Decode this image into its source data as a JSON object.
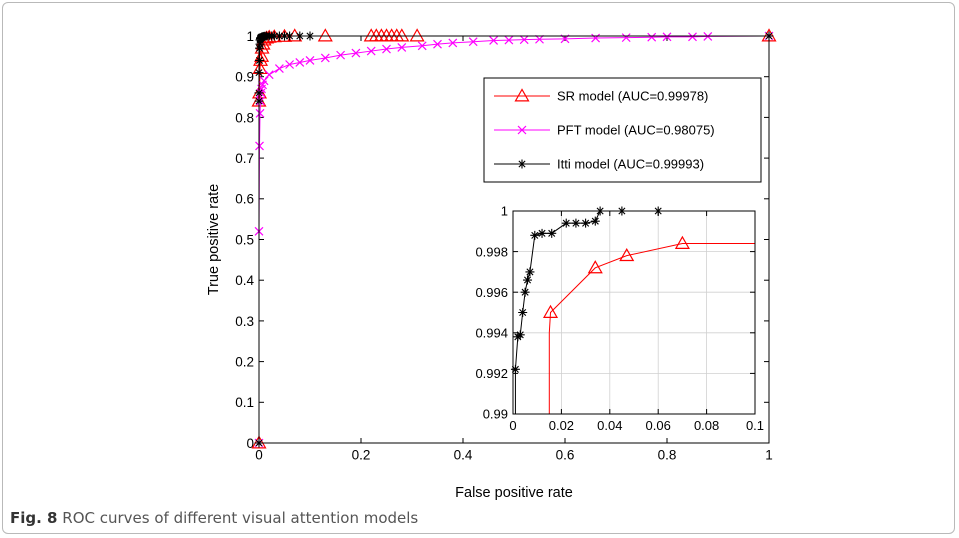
{
  "caption": {
    "label": "Fig. 8",
    "text": "ROC curves of different visual attention models"
  },
  "chart_data": [
    {
      "id": "main",
      "type": "line",
      "xlabel": "False positive rate",
      "ylabel": "True positive rate",
      "xlim": [
        0,
        1
      ],
      "ylim": [
        0,
        1
      ],
      "xticks": [
        "0",
        "0.2",
        "0.4",
        "0.6",
        "0.8",
        "1"
      ],
      "yticks": [
        "0",
        "0.1",
        "0.2",
        "0.3",
        "0.4",
        "0.5",
        "0.6",
        "0.7",
        "0.8",
        "0.9",
        "1"
      ],
      "grid": false,
      "legend": {
        "placement": "top-right",
        "entries": [
          {
            "label": "SR model (AUC=0.99978)",
            "color": "#ff0000",
            "marker": "triangle"
          },
          {
            "label": "PFT model (AUC=0.98075)",
            "color": "#ff00ff",
            "marker": "x"
          },
          {
            "label": "Itti model (AUC=0.99993)",
            "color": "#000000",
            "marker": "star"
          }
        ]
      },
      "series": [
        {
          "name": "SR model (AUC=0.99978)",
          "color": "#ff0000",
          "marker": "triangle",
          "x": [
            0,
            0,
            0.001,
            0.002,
            0.003,
            0.005,
            0.006,
            0.008,
            0.01,
            0.015,
            0.02,
            0.03,
            0.05,
            0.07,
            0.13,
            0.22,
            0.23,
            0.24,
            0.25,
            0.26,
            0.27,
            0.28,
            0.31,
            1.0
          ],
          "y": [
            0,
            0.84,
            0.86,
            0.92,
            0.94,
            0.95,
            0.97,
            0.98,
            0.99,
            0.995,
            0.997,
            0.998,
            0.999,
            1.0,
            1.0,
            1.0,
            1.0,
            1.0,
            1.0,
            1.0,
            1.0,
            1.0,
            1.0,
            1.0
          ]
        },
        {
          "name": "PFT model (AUC=0.98075)",
          "color": "#ff00ff",
          "marker": "x",
          "x": [
            0,
            0,
            0.001,
            0.002,
            0.003,
            0.004,
            0.005,
            0.007,
            0.01,
            0.02,
            0.04,
            0.06,
            0.08,
            0.1,
            0.13,
            0.16,
            0.19,
            0.22,
            0.25,
            0.28,
            0.32,
            0.35,
            0.38,
            0.42,
            0.46,
            0.49,
            0.52,
            0.55,
            0.6,
            0.66,
            0.72,
            0.77,
            0.8,
            0.85,
            0.88,
            1.0
          ],
          "y": [
            0,
            0.52,
            0.73,
            0.81,
            0.84,
            0.86,
            0.87,
            0.88,
            0.89,
            0.905,
            0.92,
            0.93,
            0.935,
            0.94,
            0.946,
            0.953,
            0.958,
            0.963,
            0.968,
            0.972,
            0.976,
            0.98,
            0.983,
            0.986,
            0.989,
            0.99,
            0.991,
            0.992,
            0.993,
            0.995,
            0.996,
            0.997,
            0.998,
            0.998,
            0.999,
            1.0
          ]
        },
        {
          "name": "Itti model (AUC=0.99993)",
          "color": "#000000",
          "marker": "star",
          "x": [
            0,
            0,
            0,
            0,
            0.001,
            0.001,
            0.002,
            0.002,
            0.003,
            0.003,
            0.004,
            0.005,
            0.006,
            0.008,
            0.01,
            0.012,
            0.015,
            0.02,
            0.025,
            0.03,
            0.04,
            0.05,
            0.06,
            0.08,
            0.1,
            1.0
          ],
          "y": [
            0,
            0.84,
            0.86,
            0.91,
            0.94,
            0.97,
            0.98,
            0.99,
            0.993,
            0.995,
            0.996,
            0.997,
            0.998,
            0.9985,
            0.999,
            0.9995,
            1.0,
            1.0,
            1.0,
            1.0,
            1.0,
            1.0,
            1.0,
            1.0,
            1.0,
            1.0
          ]
        }
      ]
    },
    {
      "id": "inset",
      "type": "line",
      "xlabel": "",
      "ylabel": "",
      "xlim": [
        0,
        0.1
      ],
      "ylim": [
        0.99,
        1.0
      ],
      "xticks": [
        "0",
        "0.02",
        "0.04",
        "0.06",
        "0.08",
        "0.1"
      ],
      "yticks": [
        "0.99",
        "0.992",
        "0.994",
        "0.996",
        "0.998",
        "1"
      ],
      "grid": true,
      "series": [
        {
          "name": "SR model (AUC=0.99978)",
          "color": "#ff0000",
          "marker": "triangle",
          "x": [
            0.015,
            0.015,
            0.0155,
            0.034,
            0.047,
            0.07,
            0.1
          ],
          "y": [
            0.99,
            0.994,
            0.995,
            0.9972,
            0.9978,
            0.9984,
            0.9984
          ],
          "markers": [
            false,
            false,
            true,
            true,
            true,
            true,
            false
          ]
        },
        {
          "name": "Itti model (AUC=0.99993)",
          "color": "#000000",
          "marker": "star",
          "x": [
            0.001,
            0.001,
            0.002,
            0.003,
            0.004,
            0.005,
            0.006,
            0.007,
            0.009,
            0.012,
            0.016,
            0.022,
            0.026,
            0.03,
            0.034,
            0.036,
            0.045,
            0.06,
            0.1
          ],
          "y": [
            0.99,
            0.9922,
            0.9938,
            0.9939,
            0.995,
            0.996,
            0.9966,
            0.997,
            0.9988,
            0.9989,
            0.9989,
            0.9994,
            0.9994,
            0.9994,
            0.9995,
            1.0,
            1.0,
            1.0,
            1.0
          ],
          "markers": [
            false,
            true,
            true,
            true,
            true,
            true,
            true,
            true,
            true,
            true,
            true,
            true,
            true,
            true,
            true,
            true,
            true,
            true,
            false
          ]
        }
      ]
    }
  ]
}
